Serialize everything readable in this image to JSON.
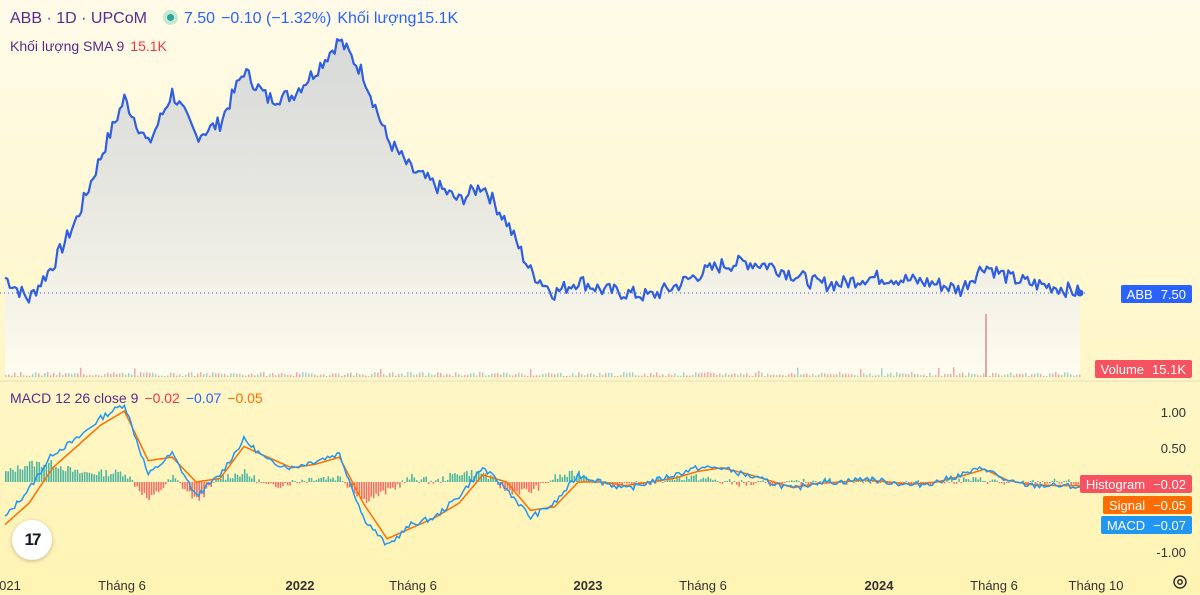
{
  "legend": {
    "symbol": "ABB · 1D · UPCoM",
    "price": "7.50",
    "change": "−0.10 (−1.32%)",
    "volume_label": "Khối lượng",
    "volume_value": "15.1K",
    "sma_label": "Khối lượng SMA 9",
    "sma_value": "15.1K",
    "macd_label": "MACD 12 26 close 9",
    "macd_hist": "−0.02",
    "macd_macd": "−0.07",
    "macd_signal": "−0.05"
  },
  "badges": {
    "price": {
      "label": "ABB",
      "value": "7.50"
    },
    "volume": {
      "label": "Volume",
      "value": "15.1K"
    },
    "histogram": {
      "label": "Histogram",
      "value": "−0.02"
    },
    "signal": {
      "label": "Signal",
      "value": "−0.05"
    },
    "macd": {
      "label": "MACD",
      "value": "−0.07"
    }
  },
  "macd_axis": [
    "1.00",
    "0.50",
    "-0.50",
    "-1.00"
  ],
  "x_axis": [
    "021",
    "Tháng 6",
    "2022",
    "Tháng 6",
    "2023",
    "Tháng 6",
    "2024",
    "Tháng 6",
    "Tháng 10"
  ],
  "colors": {
    "line": "#2f5fe0",
    "macd": "#2196f3",
    "signal": "#ff6d00",
    "hist_up": "#26a69a",
    "hist_down": "#ef5350",
    "volume_badge": "#f7525f"
  },
  "chart_data": {
    "type": "line",
    "title": "ABB · 1D · UPCoM",
    "x": [
      "2021-01",
      "2021-02",
      "2021-03",
      "2021-04",
      "2021-05",
      "2021-06",
      "2021-07",
      "2021-08",
      "2021-09",
      "2021-10",
      "2021-11",
      "2021-12",
      "2022-01",
      "2022-02",
      "2022-03",
      "2022-04",
      "2022-05",
      "2022-06",
      "2022-07",
      "2022-08",
      "2022-09",
      "2022-10",
      "2022-11",
      "2022-12",
      "2023-01",
      "2023-02",
      "2023-03",
      "2023-04",
      "2023-05",
      "2023-06",
      "2023-07",
      "2023-08",
      "2023-09",
      "2023-10",
      "2023-11",
      "2023-12",
      "2024-01",
      "2024-02",
      "2024-03",
      "2024-04",
      "2024-05",
      "2024-06",
      "2024-07",
      "2024-08",
      "2024-09",
      "2024-10"
    ],
    "series": [
      {
        "values": [
          8.0,
          7.3,
          8.4,
          9.9,
          11.9,
          13.8,
          12.3,
          14.0,
          12.6,
          13.0,
          14.7,
          13.8,
          13.9,
          14.7,
          15.7,
          14.6,
          12.5,
          11.5,
          11.0,
          10.5,
          11.0,
          9.8,
          8.2,
          7.5,
          7.9,
          7.6,
          7.5,
          7.4,
          7.7,
          8.1,
          8.4,
          8.5,
          8.4,
          8.1,
          7.8,
          7.8,
          8.0,
          8.0,
          7.9,
          7.8,
          7.6,
          8.4,
          8.0,
          7.8,
          7.7,
          7.5
        ]
      }
    ],
    "volume_value": "15.1K",
    "macd": {
      "macd": [
        -0.5,
        -0.1,
        0.4,
        0.6,
        0.9,
        1.1,
        0.1,
        0.4,
        -0.2,
        0.1,
        0.6,
        0.3,
        0.2,
        0.3,
        0.4,
        -0.5,
        -0.9,
        -0.6,
        -0.5,
        -0.2,
        0.2,
        -0.1,
        -0.5,
        -0.3,
        0.1,
        0.0,
        -0.1,
        0.0,
        0.1,
        0.2,
        0.2,
        0.1,
        0.0,
        -0.1,
        0.0,
        0.0,
        0.05,
        0.0,
        -0.05,
        0.0,
        0.1,
        0.2,
        0.0,
        -0.05,
        -0.05,
        -0.07
      ],
      "signal": [
        -0.6,
        -0.3,
        0.2,
        0.5,
        0.8,
        1.0,
        0.3,
        0.35,
        0.0,
        0.05,
        0.5,
        0.35,
        0.2,
        0.25,
        0.35,
        -0.3,
        -0.8,
        -0.65,
        -0.5,
        -0.3,
        0.1,
        0.0,
        -0.4,
        -0.35,
        0.0,
        0.0,
        -0.05,
        0.0,
        0.05,
        0.15,
        0.2,
        0.12,
        0.02,
        -0.08,
        -0.02,
        0.0,
        0.03,
        0.0,
        -0.03,
        0.0,
        0.08,
        0.18,
        0.02,
        -0.04,
        -0.05,
        -0.05
      ]
    },
    "macd_ylim": [
      -1.15,
      1.15
    ],
    "grid": false
  }
}
